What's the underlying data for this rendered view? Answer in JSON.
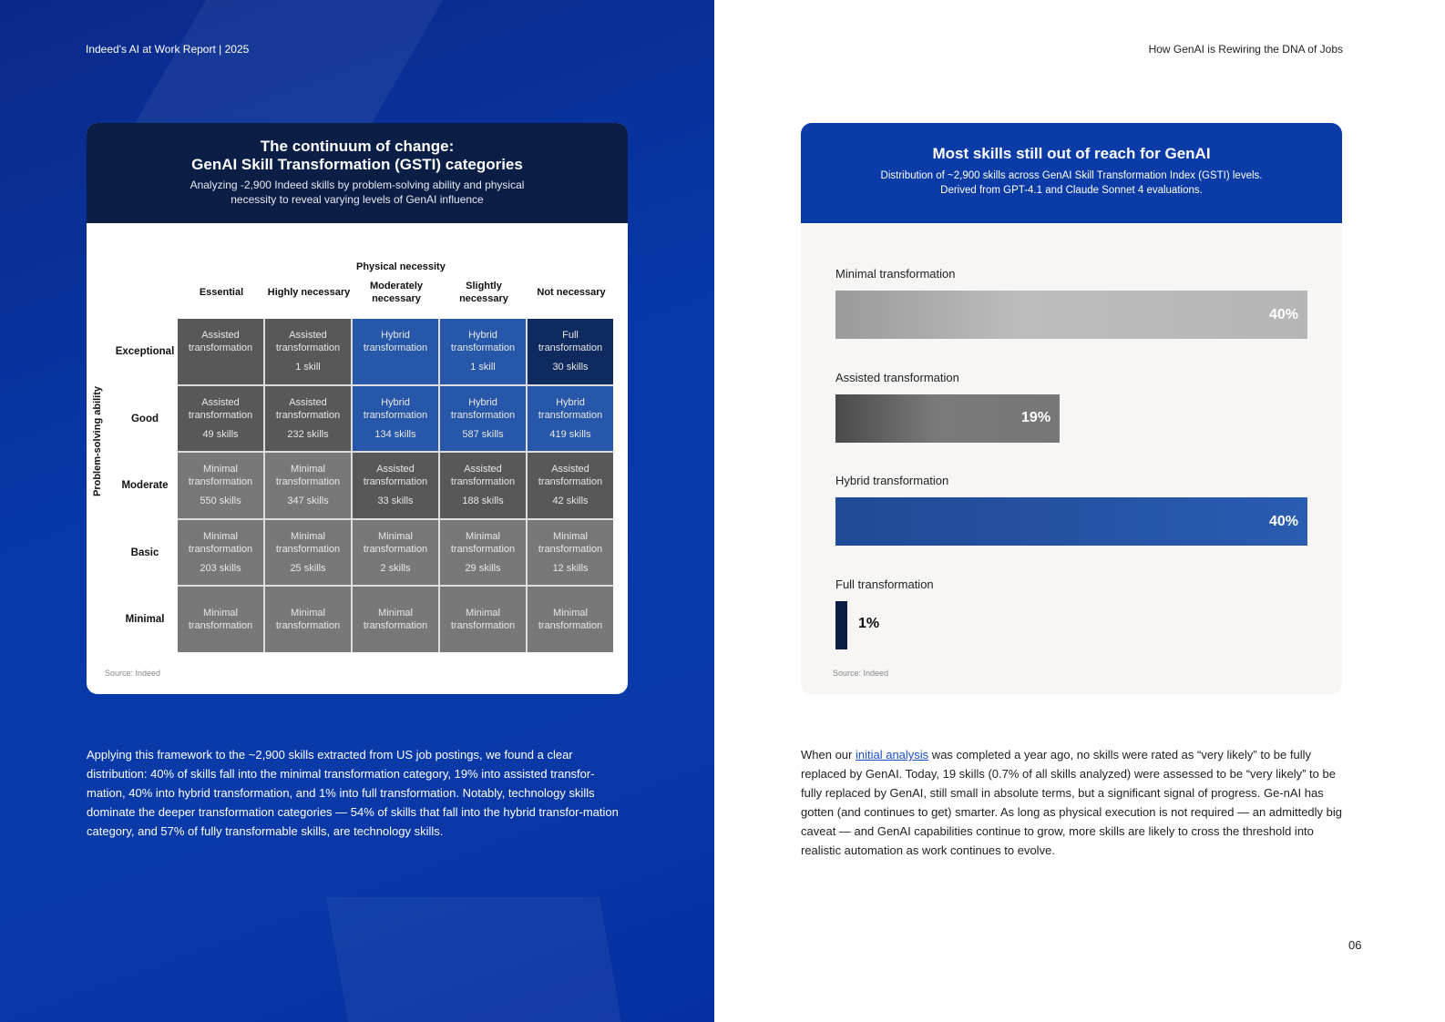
{
  "header": {
    "left": "Indeed's AI at Work Report  |  2025",
    "right": "How GenAI is Rewiring the DNA of Jobs"
  },
  "matrix": {
    "title_line1": "The continuum of change:",
    "title_line2": "GenAI Skill Transformation (GSTI) categories",
    "subtitle": "Analyzing -2,900 Indeed skills by problem-solving ability and physical necessity to reveal varying levels of GenAI influence",
    "column_group": "Physical necessity",
    "columns": [
      "Essential",
      "Highly necessary",
      "Moderately necessary",
      "Slightly necessary",
      "Not necessary"
    ],
    "row_axis": "Problem-solving ability",
    "rows": [
      {
        "label": "Exceptional",
        "cells": [
          {
            "category": "Assisted transformation",
            "count": "",
            "tone": "dark-gray"
          },
          {
            "category": "Assisted transformation",
            "count": "1 skill",
            "tone": "dark-gray"
          },
          {
            "category": "Hybrid transformation",
            "count": "",
            "tone": "blue"
          },
          {
            "category": "Hybrid transformation",
            "count": "1 skill",
            "tone": "blue"
          },
          {
            "category": "Full transformation",
            "count": "30 skills",
            "tone": "navy"
          }
        ]
      },
      {
        "label": "Good",
        "cells": [
          {
            "category": "Assisted transformation",
            "count": "49 skills",
            "tone": "dark-gray"
          },
          {
            "category": "Assisted transformation",
            "count": "232 skills",
            "tone": "dark-gray"
          },
          {
            "category": "Hybrid transformation",
            "count": "134 skills",
            "tone": "blue"
          },
          {
            "category": "Hybrid transformation",
            "count": "587 skills",
            "tone": "blue"
          },
          {
            "category": "Hybrid transformation",
            "count": "419 skills",
            "tone": "blue"
          }
        ]
      },
      {
        "label": "Moderate",
        "cells": [
          {
            "category": "Minimal transformation",
            "count": "550 skills",
            "tone": "gray"
          },
          {
            "category": "Minimal transformation",
            "count": "347 skills",
            "tone": "gray"
          },
          {
            "category": "Assisted transformation",
            "count": "33 skills",
            "tone": "dark-gray"
          },
          {
            "category": "Assisted transformation",
            "count": "188 skills",
            "tone": "dark-gray"
          },
          {
            "category": "Assisted transformation",
            "count": "42 skills",
            "tone": "dark-gray"
          }
        ]
      },
      {
        "label": "Basic",
        "cells": [
          {
            "category": "Minimal transformation",
            "count": "203 skills",
            "tone": "gray"
          },
          {
            "category": "Minimal transformation",
            "count": "25 skills",
            "tone": "gray"
          },
          {
            "category": "Minimal transformation",
            "count": "2 skills",
            "tone": "gray"
          },
          {
            "category": "Minimal transformation",
            "count": "29 skills",
            "tone": "gray"
          },
          {
            "category": "Minimal transformation",
            "count": "12 skills",
            "tone": "gray"
          }
        ]
      },
      {
        "label": "Minimal",
        "cells": [
          {
            "category": "Minimal transformation",
            "count": "",
            "tone": "gray"
          },
          {
            "category": "Minimal transformation",
            "count": "",
            "tone": "gray"
          },
          {
            "category": "Minimal transformation",
            "count": "",
            "tone": "gray"
          },
          {
            "category": "Minimal transformation",
            "count": "",
            "tone": "gray"
          },
          {
            "category": "Minimal transformation",
            "count": "",
            "tone": "gray"
          }
        ]
      }
    ],
    "source": "Source: Indeed"
  },
  "left_paragraph": "Applying this framework to the ~2,900 skills extracted from US job postings, we found a clear distribution: 40% of skills fall into the minimal transformation category, 19% into assisted transfor-mation, 40% into hybrid transformation, and 1% into full transformation. Notably, technology skills dominate the deeper transformation categories — 54% of skills that fall into the hybrid transfor-mation category, and 57% of fully transformable skills, are technology skills.",
  "chart_data": {
    "type": "bar",
    "orientation": "horizontal",
    "title": "Most skills still out of reach for GenAI",
    "subtitle_line1": "Distribution of ~2,900 skills across GenAI Skill Transformation Index (GSTI) levels.",
    "subtitle_line2": "Derived from GPT-4.1 and Claude Sonnet 4 evaluations.",
    "categories": [
      "Minimal transformation",
      "Assisted transformation",
      "Hybrid transformation",
      "Full transformation"
    ],
    "values": [
      40,
      19,
      40,
      1
    ],
    "labels": [
      "40%",
      "19%",
      "40%",
      "1%"
    ],
    "colors": [
      "#b0b0b0",
      "#707070",
      "#2556a8",
      "#0b1e45"
    ],
    "source": "Source: Indeed"
  },
  "right_paragraph": {
    "before": "When our ",
    "link": "initial analysis",
    "after": " was completed a year ago, no skills were rated as “very likely” to be fully replaced by GenAI. Today, 19 skills (0.7% of all skills analyzed) were assessed to be “very likely” to be fully replaced by GenAI, still small in absolute terms, but a significant signal of progress. Ge-nAI has gotten (and continues to get) smarter. As long as physical execution is not required — an admittedly big caveat — and GenAI capabilities continue to grow, more skills are likely to cross the threshold into realistic automation as work continues to evolve."
  },
  "page_number": "06",
  "colors": {
    "dark-gray": "#585858",
    "gray": "#787878",
    "blue": "#2657a8",
    "navy": "#0f2a5e"
  }
}
